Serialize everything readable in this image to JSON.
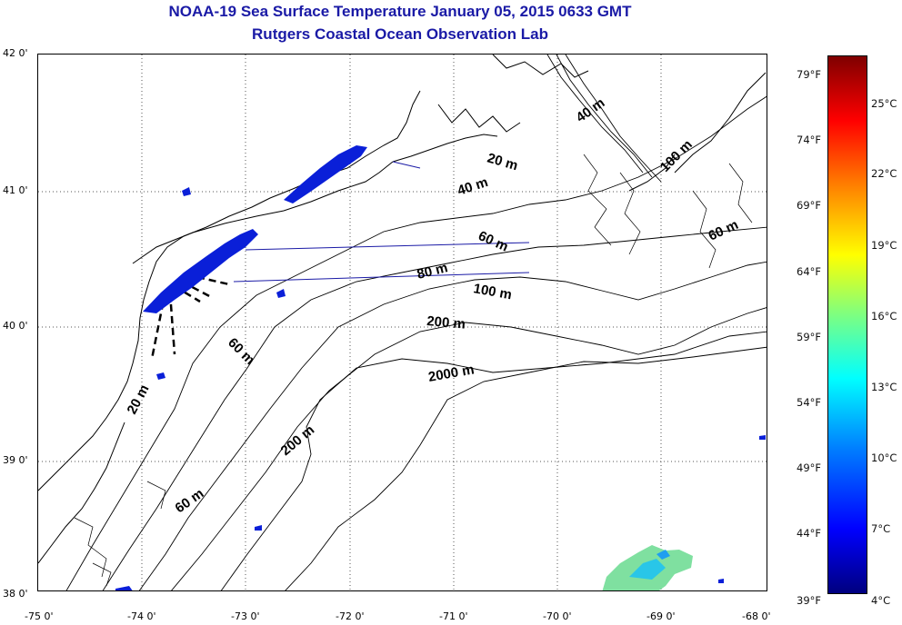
{
  "title": {
    "line1": "NOAA-19 Sea Surface Temperature January 05, 2015 0633 GMT",
    "line2": "Rutgers Coastal Ocean Observation Lab"
  },
  "axes": {
    "lat_labels": [
      "42 0'",
      "41 0'",
      "40 0'",
      "39 0'",
      "38 0'"
    ],
    "lon_labels": [
      "-75 0'",
      "-74 0'",
      "-73 0'",
      "-72 0'",
      "-71 0'",
      "-70 0'",
      "-69 0'",
      "-68 0'"
    ]
  },
  "colorbar": {
    "fahrenheit": [
      "79°F",
      "74°F",
      "69°F",
      "64°F",
      "59°F",
      "54°F",
      "49°F",
      "44°F",
      "39°F"
    ],
    "celsius": [
      "25°C",
      "22°C",
      "19°C",
      "16°C",
      "13°C",
      "10°C",
      "7°C",
      "4°C"
    ]
  },
  "contours": {
    "labels": [
      "20 m",
      "40 m",
      "100 m",
      "60 m",
      "60 m",
      "80 m",
      "100 m",
      "200 m",
      "60 m",
      "2000 m",
      "20 m",
      "200 m",
      "60 m",
      "40 m"
    ]
  },
  "colors": {
    "title": "#1a1aa6",
    "cold_sst": "#0a1fd8",
    "warm_sst": "#7fe0a0"
  }
}
